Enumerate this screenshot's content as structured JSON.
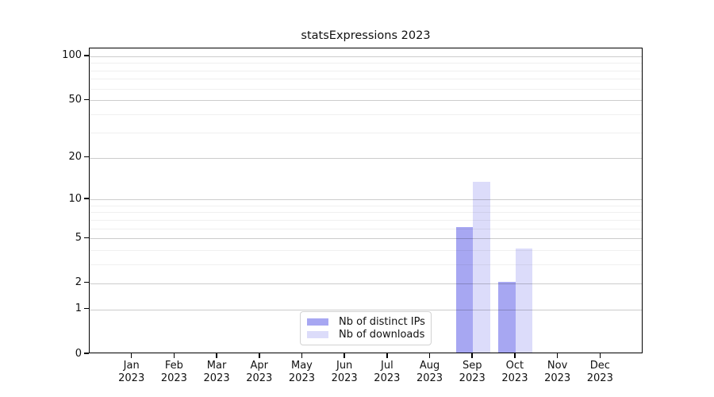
{
  "title": "statsExpressions 2023",
  "chart_data": {
    "type": "bar",
    "title": "statsExpressions 2023",
    "xlabel": "",
    "ylabel": "",
    "scale": "log1p",
    "ylim": [
      0,
      113
    ],
    "yticks": [
      0,
      1,
      2,
      5,
      10,
      20,
      50,
      100
    ],
    "minor_gridlines": [
      3,
      4,
      6,
      7,
      8,
      9,
      30,
      40,
      60,
      70,
      80,
      90
    ],
    "grid": "on",
    "legend_position": "inside-bottom-center",
    "categories": [
      {
        "month": "Jan",
        "year": "2023"
      },
      {
        "month": "Feb",
        "year": "2023"
      },
      {
        "month": "Mar",
        "year": "2023"
      },
      {
        "month": "Apr",
        "year": "2023"
      },
      {
        "month": "May",
        "year": "2023"
      },
      {
        "month": "Jun",
        "year": "2023"
      },
      {
        "month": "Jul",
        "year": "2023"
      },
      {
        "month": "Aug",
        "year": "2023"
      },
      {
        "month": "Sep",
        "year": "2023"
      },
      {
        "month": "Oct",
        "year": "2023"
      },
      {
        "month": "Nov",
        "year": "2023"
      },
      {
        "month": "Dec",
        "year": "2023"
      }
    ],
    "series": [
      {
        "name": "Nb of distinct IPs",
        "color": "#a7a7f2",
        "values": [
          0,
          0,
          0,
          0,
          0,
          0,
          0,
          0,
          6,
          2,
          0,
          0
        ]
      },
      {
        "name": "Nb of downloads",
        "color": "#dcdcfa",
        "values": [
          0,
          0,
          0,
          0,
          0,
          0,
          0,
          0,
          13,
          4,
          0,
          0
        ]
      }
    ]
  },
  "colors": {
    "background": "#ffffff",
    "axis": "#000000",
    "grid_major": "rgba(0,0,0,0.20)",
    "grid_minor": "rgba(0,0,0,0.06)",
    "legend_border": "#d2d2d2",
    "text": "#111111"
  }
}
